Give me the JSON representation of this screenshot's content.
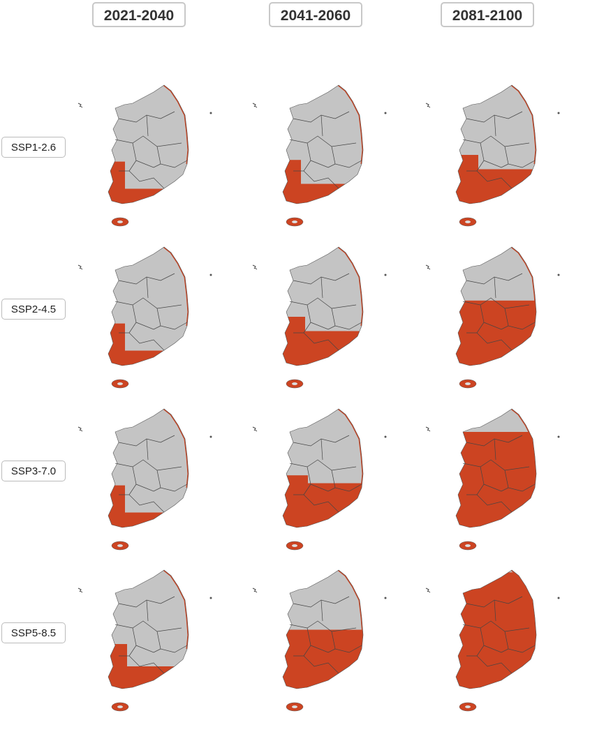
{
  "columns": [
    "2021-2040",
    "2041-2060",
    "2081-2100"
  ],
  "rows": [
    "SSP1-2.6",
    "SSP2-4.5",
    "SSP3-7.0",
    "SSP5-8.5"
  ]
}
